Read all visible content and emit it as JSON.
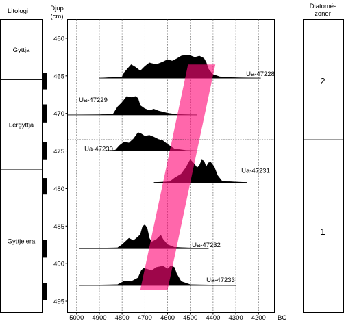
{
  "column_headers": {
    "lithology": "Litologi",
    "depth_line1": "Djup",
    "depth_line2": "(cm)",
    "zones_line1": "Diatomé-",
    "zones_line2": "zoner"
  },
  "lithology_units": [
    {
      "label": "Gyttja",
      "top": 457.5,
      "bottom": 465.5
    },
    {
      "label": "Lergyttja",
      "top": 465.5,
      "bottom": 477.5
    },
    {
      "label": "Gyttjelera",
      "top": 477.5,
      "bottom": 496.5
    }
  ],
  "sample_marks": [
    {
      "top": 464.6,
      "bottom": 466.8
    },
    {
      "top": 468.8,
      "bottom": 471.2
    },
    {
      "top": 473.8,
      "bottom": 476.2
    },
    {
      "top": 478.6,
      "bottom": 480.8
    },
    {
      "top": 486.8,
      "bottom": 489.2
    },
    {
      "top": 492.6,
      "bottom": 494.9
    }
  ],
  "diatom_zones": [
    {
      "label": "2",
      "top": 457.5,
      "bottom": 473.5
    },
    {
      "label": "1",
      "top": 473.5,
      "bottom": 496.5
    }
  ],
  "zone_boundary_depth": 473.5,
  "colors": {
    "distribution": "#000000",
    "age_band": "#ff0a78",
    "grid": "#555555"
  },
  "chart_data": {
    "type": "area",
    "title": "",
    "xlabel": "",
    "ylabel": "",
    "x_unit": "BC",
    "xlim": [
      5040,
      4130
    ],
    "ylim": [
      457.5,
      496.5
    ],
    "x_ticks": [
      5000,
      4900,
      4800,
      4700,
      4600,
      4500,
      4400,
      4300,
      4200
    ],
    "y_ticks": [
      460,
      465,
      470,
      475,
      480,
      485,
      490,
      495
    ],
    "grid": "vertical dashed",
    "series": [
      {
        "name": "Ua-47228",
        "depth": 465.3,
        "range": [
          4900,
          4190
        ],
        "shape": [
          [
            4900,
            0
          ],
          [
            4800,
            0.3
          ],
          [
            4790,
            1.3
          ],
          [
            4760,
            3.0
          ],
          [
            4740,
            2.4
          ],
          [
            4720,
            1.6
          ],
          [
            4700,
            2.6
          ],
          [
            4680,
            3.4
          ],
          [
            4650,
            3.0
          ],
          [
            4620,
            3.6
          ],
          [
            4600,
            4.1
          ],
          [
            4580,
            3.8
          ],
          [
            4560,
            4.3
          ],
          [
            4540,
            4.9
          ],
          [
            4520,
            5.1
          ],
          [
            4500,
            5.0
          ],
          [
            4480,
            4.6
          ],
          [
            4460,
            4.9
          ],
          [
            4440,
            4.4
          ],
          [
            4430,
            3.5
          ],
          [
            4420,
            2.0
          ],
          [
            4400,
            0.8
          ],
          [
            4370,
            0.3
          ],
          [
            4300,
            0.1
          ],
          [
            4190,
            0
          ]
        ]
      },
      {
        "name": "Ua-47229",
        "depth": 470.2,
        "range": [
          5040,
          4470
        ],
        "shape": [
          [
            5040,
            0
          ],
          [
            4900,
            0.05
          ],
          [
            4840,
            0.2
          ],
          [
            4820,
            1.8
          ],
          [
            4800,
            2.8
          ],
          [
            4780,
            4.1
          ],
          [
            4760,
            3.9
          ],
          [
            4740,
            4.1
          ],
          [
            4730,
            3.7
          ],
          [
            4720,
            2.1
          ],
          [
            4700,
            1.4
          ],
          [
            4680,
            1.0
          ],
          [
            4660,
            1.3
          ],
          [
            4640,
            0.9
          ],
          [
            4600,
            0.4
          ],
          [
            4560,
            0.1
          ],
          [
            4470,
            0
          ]
        ]
      },
      {
        "name": "Ua-47230",
        "depth": 475.0,
        "range": [
          4960,
          4420
        ],
        "shape": [
          [
            4960,
            0
          ],
          [
            4880,
            0.05
          ],
          [
            4830,
            0.2
          ],
          [
            4810,
            1.3
          ],
          [
            4790,
            2.0
          ],
          [
            4770,
            1.8
          ],
          [
            4750,
            2.7
          ],
          [
            4730,
            4.1
          ],
          [
            4715,
            3.8
          ],
          [
            4700,
            3.3
          ],
          [
            4680,
            3.5
          ],
          [
            4660,
            3.1
          ],
          [
            4640,
            2.6
          ],
          [
            4620,
            2.3
          ],
          [
            4600,
            1.5
          ],
          [
            4570,
            0.5
          ],
          [
            4520,
            0.15
          ],
          [
            4420,
            0
          ]
        ]
      },
      {
        "name": "Ua-47231",
        "depth": 479.2,
        "range": [
          4660,
          4250
        ],
        "shape": [
          [
            4660,
            0
          ],
          [
            4590,
            0.2
          ],
          [
            4570,
            1.0
          ],
          [
            4540,
            1.9
          ],
          [
            4520,
            3.3
          ],
          [
            4500,
            5.1
          ],
          [
            4485,
            4.3
          ],
          [
            4470,
            3.3
          ],
          [
            4460,
            3.8
          ],
          [
            4450,
            5.0
          ],
          [
            4440,
            4.8
          ],
          [
            4430,
            3.5
          ],
          [
            4420,
            4.4
          ],
          [
            4410,
            4.5
          ],
          [
            4395,
            3.5
          ],
          [
            4380,
            1.6
          ],
          [
            4360,
            0.3
          ],
          [
            4250,
            0
          ]
        ]
      },
      {
        "name": "Ua-47232",
        "depth": 488.0,
        "range": [
          4990,
          4420
        ],
        "shape": [
          [
            4990,
            0
          ],
          [
            4820,
            0.2
          ],
          [
            4800,
            0.9
          ],
          [
            4770,
            2.3
          ],
          [
            4750,
            1.8
          ],
          [
            4740,
            2.2
          ],
          [
            4720,
            3.1
          ],
          [
            4710,
            4.9
          ],
          [
            4700,
            5.3
          ],
          [
            4690,
            4.6
          ],
          [
            4680,
            2.3
          ],
          [
            4670,
            1.5
          ],
          [
            4650,
            2.0
          ],
          [
            4630,
            3.0
          ],
          [
            4620,
            2.1
          ],
          [
            4600,
            0.9
          ],
          [
            4570,
            0.3
          ],
          [
            4420,
            0
          ]
        ]
      },
      {
        "name": "Ua-47233",
        "depth": 492.9,
        "range": [
          4990,
          4300
        ],
        "shape": [
          [
            4990,
            0
          ],
          [
            4820,
            0.2
          ],
          [
            4790,
            1.0
          ],
          [
            4760,
            0.9
          ],
          [
            4730,
            1.7
          ],
          [
            4715,
            3.4
          ],
          [
            4705,
            3.8
          ],
          [
            4690,
            3.6
          ],
          [
            4670,
            3.3
          ],
          [
            4650,
            4.0
          ],
          [
            4620,
            4.3
          ],
          [
            4600,
            3.7
          ],
          [
            4585,
            4.4
          ],
          [
            4570,
            4.0
          ],
          [
            4560,
            2.6
          ],
          [
            4540,
            0.9
          ],
          [
            4500,
            0.2
          ],
          [
            4300,
            0
          ]
        ]
      }
    ],
    "age_band": [
      [
        4510,
        463.5
      ],
      [
        4390,
        463.5
      ],
      [
        4600,
        493.5
      ],
      [
        4720,
        493.5
      ]
    ]
  }
}
